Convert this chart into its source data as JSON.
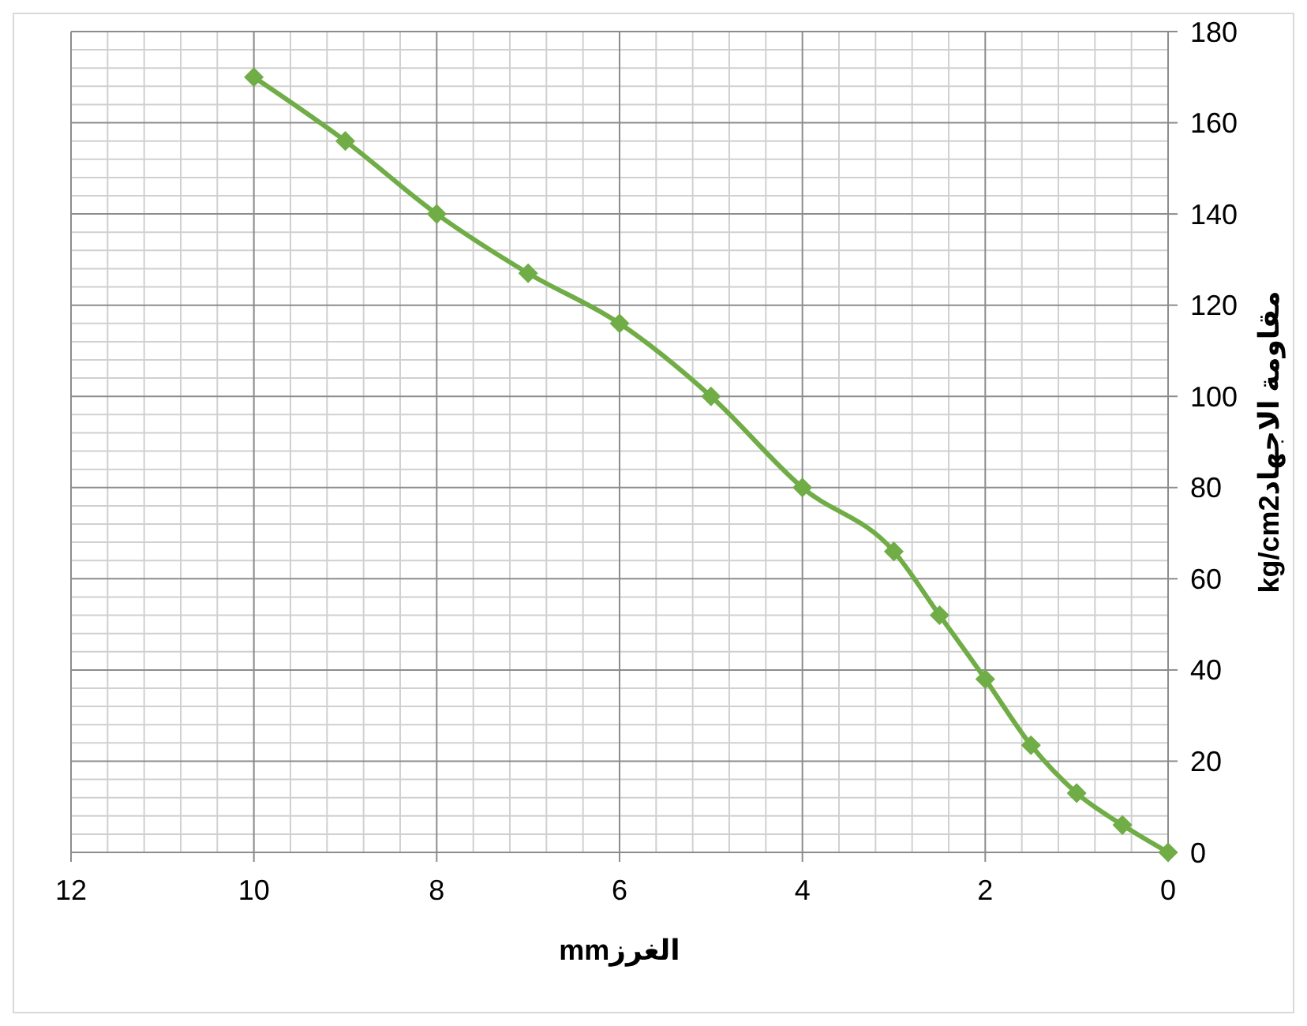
{
  "chart_data": {
    "type": "line",
    "xlabel": "الغرزmm",
    "ylabel": "مقاومة الاجهادkg/cm2",
    "x": [
      10,
      9,
      8,
      7,
      6,
      5,
      4,
      3,
      2.5,
      2,
      1.5,
      1,
      0.5,
      0
    ],
    "series": [
      {
        "color": "#70ad47",
        "values": [
          170,
          156,
          140,
          127,
          116,
          100,
          80,
          66,
          52,
          38,
          23.5,
          13,
          6,
          0
        ]
      }
    ],
    "xlim": [
      12,
      0
    ],
    "xticks": [
      12,
      10,
      8,
      6,
      4,
      2,
      0
    ],
    "ylim": [
      0,
      180
    ],
    "yticks": [
      0,
      20,
      40,
      60,
      80,
      100,
      120,
      140,
      160,
      180
    ],
    "grid": true,
    "marker": "diamond",
    "line_style": "solid"
  }
}
